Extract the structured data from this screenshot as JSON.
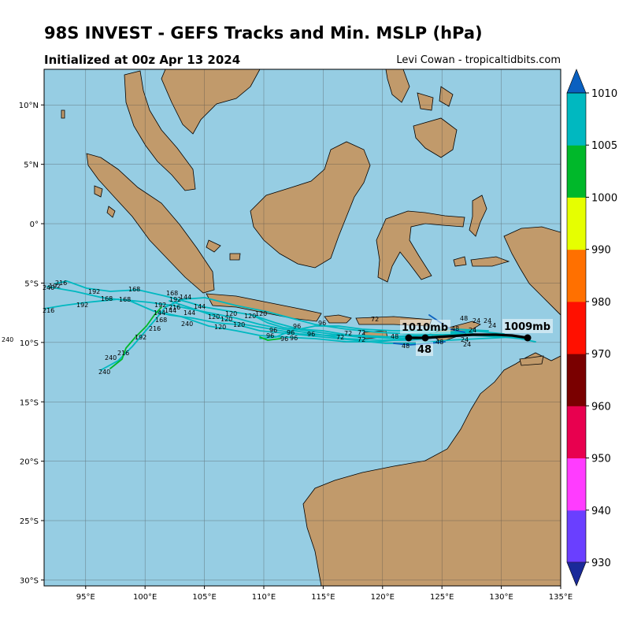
{
  "header": {
    "title": "98S INVEST - GEFS Tracks and Min. MSLP (hPa)",
    "subtitle": "Initialized at 00z Apr 13 2024",
    "credit": "Levi Cowan - tropicaltidbits.com"
  },
  "map": {
    "lon_range": [
      91.5,
      135
    ],
    "lat_range": [
      -30.5,
      13
    ],
    "lon_ticks": [
      "95°E",
      "100°E",
      "105°E",
      "110°E",
      "115°E",
      "120°E",
      "125°E",
      "130°E",
      "135°E"
    ],
    "lat_ticks": [
      "10°N",
      "5°N",
      "0°",
      "5°S",
      "10°S",
      "15°S",
      "20°S",
      "25°S",
      "30°S"
    ],
    "colors": {
      "ocean": "#96cde3",
      "land": "#c19a6b",
      "grid": "#444444"
    }
  },
  "annotations": {
    "left_mslp": "1010mb",
    "right_mslp": "1009mb",
    "hour_label": "48",
    "edge_label": "240"
  },
  "track_hour_labels": [
    "24",
    "48",
    "72",
    "96",
    "120",
    "144",
    "168",
    "192",
    "216",
    "240"
  ],
  "colorbar": {
    "ticks": [
      "1010",
      "1005",
      "1000",
      "990",
      "980",
      "970",
      "960",
      "950",
      "940",
      "930"
    ],
    "colors": [
      "#1a2a99",
      "#6a3fff",
      "#ff3cff",
      "#e8004f",
      "#7a0000",
      "#ff1000",
      "#ff7000",
      "#e6ff00",
      "#00b82a",
      "#00b8c0",
      "#0a60c0"
    ]
  }
}
